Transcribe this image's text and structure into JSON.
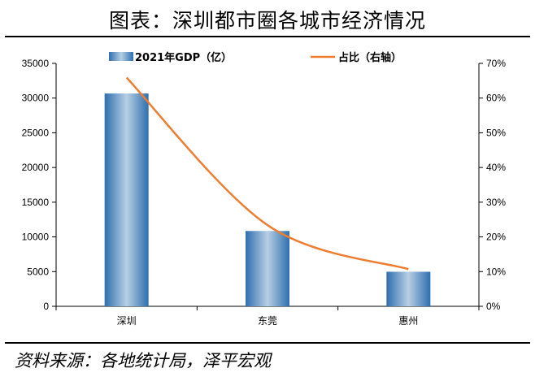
{
  "title": "图表：深圳都市圈各城市经济情况",
  "source": "资料来源：各地统计局，泽平宏观",
  "chart_data": {
    "type": "bar",
    "categories": [
      "深圳",
      "东莞",
      "惠州"
    ],
    "series": [
      {
        "name": "2021年GDP（亿）",
        "type": "bar",
        "axis": "left",
        "values": [
          30665,
          10855,
          4977
        ]
      },
      {
        "name": "占比（右轴）",
        "type": "line",
        "axis": "right",
        "values": [
          65.9,
          23.4,
          10.7
        ]
      }
    ],
    "left_axis": {
      "min": 0,
      "max": 35000,
      "ticks": [
        "0",
        "5000",
        "10000",
        "15000",
        "20000",
        "25000",
        "30000",
        "35000"
      ]
    },
    "right_axis": {
      "min": 0,
      "max": 70,
      "ticks": [
        "0%",
        "10%",
        "20%",
        "30%",
        "40%",
        "50%",
        "60%",
        "70%"
      ]
    },
    "legend_position": "top-center",
    "grid": false,
    "colors": {
      "bar_dark": "#2e6fae",
      "bar_light": "#b7cfe3",
      "line": "#ed7d31"
    }
  }
}
